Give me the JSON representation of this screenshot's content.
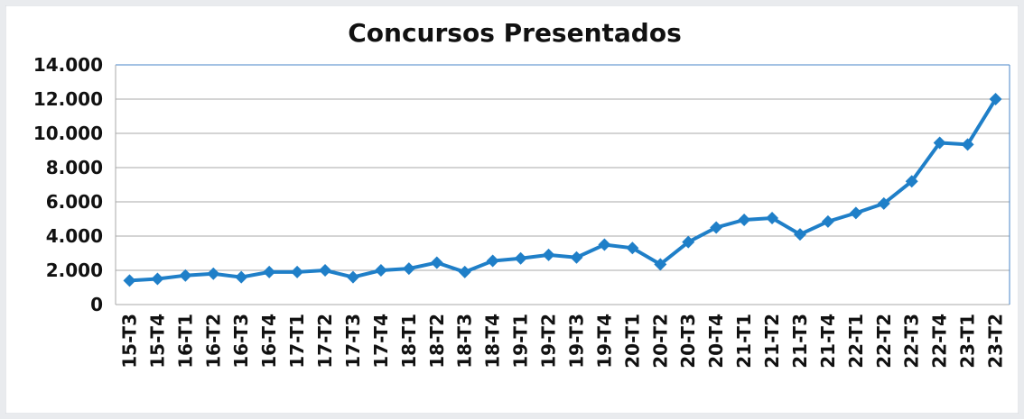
{
  "chart_data": {
    "type": "line",
    "title": "Concursos Presentados",
    "categories": [
      "15-T3",
      "15-T4",
      "16-T1",
      "16-T2",
      "16-T3",
      "16-T4",
      "17-T1",
      "17-T2",
      "17-T3",
      "17-T4",
      "18-T1",
      "18-T2",
      "18-T3",
      "18-T4",
      "19-T1",
      "19-T2",
      "19-T3",
      "19-T4",
      "20-T1",
      "20-T2",
      "20-T3",
      "20-T4",
      "21-T1",
      "21-T2",
      "21-T3",
      "21-T4",
      "22-T1",
      "22-T2",
      "22-T3",
      "22-T4",
      "23-T1",
      "23-T2"
    ],
    "values": [
      1400,
      1500,
      1700,
      1800,
      1600,
      1900,
      1900,
      2000,
      1600,
      2000,
      2100,
      2450,
      1900,
      2550,
      2700,
      2900,
      2750,
      3500,
      3300,
      2350,
      3650,
      4500,
      4950,
      5050,
      4100,
      4850,
      5350,
      5900,
      7200,
      9450,
      9350,
      12000
    ],
    "color": "#1f7fc8",
    "ylim": [
      0,
      14000
    ],
    "yticks": [
      0,
      {
        "value": 2000,
        "label": "2.000"
      },
      {
        "value": 4000,
        "label": "4.000"
      },
      {
        "value": 6000,
        "label": "6.000"
      },
      {
        "value": 8000,
        "label": "8.000"
      },
      {
        "value": 10000,
        "label": "10.000"
      },
      {
        "value": 12000,
        "label": "12.000"
      },
      {
        "value": 14000,
        "label": "14.000"
      }
    ],
    "grid": true
  }
}
